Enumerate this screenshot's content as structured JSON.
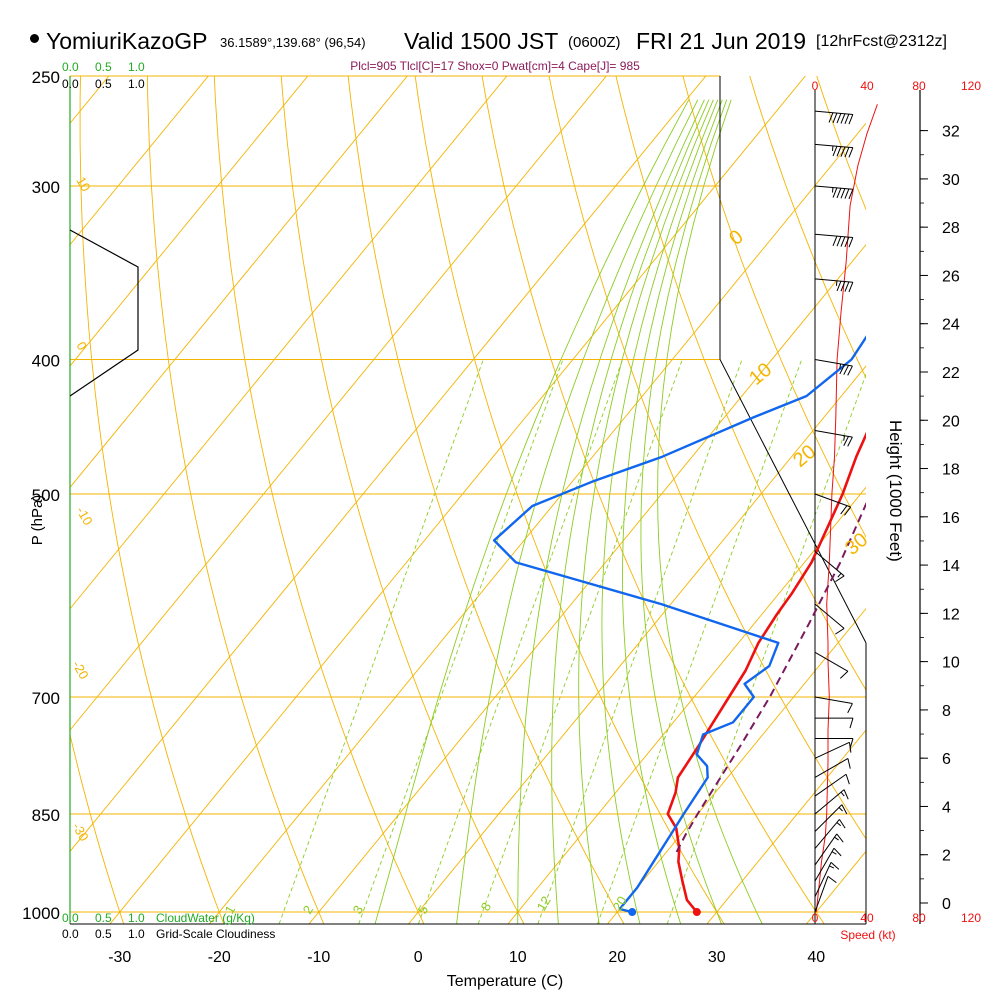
{
  "header": {
    "site": "YomiuriKazoGP",
    "coords": "36.1589°,139.68° (96,54)",
    "valid": "Valid 1500 JST",
    "zulu": "(0600Z)",
    "date": "FRI 21 Jun 2019",
    "forecast": "[12hrFcst@2312z]",
    "params": "Plcl=905 Tlcl[C]=17 Shox=0 Pwat[cm]=4 Cape[J]= 985"
  },
  "colors": {
    "temperature": "#ee1111",
    "dewpoint": "#1166ee",
    "parcel": "#7a1a5e",
    "isobar": "#f4b400",
    "mixing_ratio": "#8ccc22",
    "cloud_scale": "#22aa22",
    "speed": "#ee1111"
  },
  "chart_data": {
    "type": "line",
    "title": "Valid 1500 JST (0600Z) FRI 21 Jun 2019",
    "xlabel": "Temperature (C)",
    "ylabel": "P (hPa)",
    "y2label": "Height (1000 Feet)",
    "xticks": [
      "-30",
      "-20",
      "-10",
      "0",
      "10",
      "20",
      "30",
      "40"
    ],
    "xlim": [
      -35,
      45
    ],
    "yticks": [
      "250",
      "300",
      "400",
      "500",
      "700",
      "850",
      "1000"
    ],
    "ylim": [
      1020,
      250
    ],
    "height_ticks": [
      "0",
      "2",
      "4",
      "6",
      "8",
      "10",
      "12",
      "14",
      "16",
      "18",
      "20",
      "22",
      "24",
      "26",
      "28",
      "30",
      "32"
    ],
    "mixing_ratio_labels": [
      "1",
      "2",
      "3",
      "5",
      "8",
      "12",
      "20"
    ],
    "dry_adiabat_labels": [
      "0",
      "10",
      "20",
      "30"
    ],
    "isotherm_labels": [
      "10",
      "0",
      "-10",
      "-20",
      "-30"
    ],
    "cloud_water_label": "CloudWater (g/Kg)",
    "cloudiness_label": "Grid-Scale Cloudiness",
    "cloud_scale_ticks": [
      "0.0",
      "0.5",
      "1.0"
    ],
    "speed_label": "Speed (kt)",
    "speed_ticks": [
      "0",
      "40",
      "80",
      "120"
    ],
    "series": [
      {
        "points": [
          [
            28,
            1000
          ],
          [
            26,
            980
          ],
          [
            24,
            950
          ],
          [
            22,
            920
          ],
          [
            21,
            900
          ],
          [
            19,
            870
          ],
          [
            17,
            850
          ],
          [
            16,
            820
          ],
          [
            15,
            800
          ],
          [
            14.5,
            760
          ],
          [
            14,
            730
          ],
          [
            13.5,
            700
          ],
          [
            13,
            670
          ],
          [
            12,
            640
          ],
          [
            11.5,
            610
          ],
          [
            11.3,
            590
          ],
          [
            10.7,
            560
          ],
          [
            9.5,
            530
          ],
          [
            8.2,
            500
          ],
          [
            6.5,
            470
          ],
          [
            5,
            440
          ],
          [
            4.3,
            425
          ],
          [
            4,
            400
          ],
          [
            3.2,
            370
          ],
          [
            2,
            340
          ],
          [
            0.5,
            310
          ],
          [
            -0.8,
            285
          ],
          [
            -1.5,
            265
          ]
        ]
      },
      {
        "points": [
          [
            21.5,
            1000
          ],
          [
            20,
            995
          ],
          [
            20,
            960
          ],
          [
            19.5,
            920
          ],
          [
            19,
            880
          ],
          [
            18.6,
            850
          ],
          [
            18,
            800
          ],
          [
            17,
            785
          ],
          [
            15,
            770
          ],
          [
            14,
            745
          ],
          [
            16,
            730
          ],
          [
            16,
            700
          ],
          [
            14,
            685
          ],
          [
            15,
            665
          ],
          [
            14,
            640
          ],
          [
            -1,
            600
          ],
          [
            -19,
            560
          ],
          [
            -23,
            540
          ],
          [
            -22,
            510
          ],
          [
            -18,
            490
          ],
          [
            -13,
            470
          ],
          [
            -7,
            440
          ],
          [
            -3.5,
            425
          ],
          [
            -2,
            400
          ],
          [
            -2.5,
            380
          ],
          [
            -3.5,
            365
          ],
          [
            -4.5,
            340
          ],
          [
            -5.8,
            320
          ],
          [
            -7.5,
            305
          ],
          [
            -9.5,
            290
          ],
          [
            -11.5,
            278
          ],
          [
            -13,
            265
          ]
        ]
      },
      {
        "points": [
          [
            21,
            905
          ],
          [
            20.5,
            880
          ],
          [
            20,
            850
          ],
          [
            18.7,
            760
          ],
          [
            17.6,
            700
          ],
          [
            15.5,
            620
          ],
          [
            13.6,
            560
          ],
          [
            11,
            500
          ],
          [
            7.5,
            440
          ],
          [
            3.4,
            390
          ],
          [
            -1,
            350
          ],
          [
            -3.5,
            330
          ],
          [
            -5.5,
            315
          ],
          [
            -7.6,
            300
          ],
          [
            -10,
            290
          ]
        ]
      },
      {
        "points": [
          [
            1,
            1000
          ],
          [
            3,
            960
          ],
          [
            5,
            920
          ],
          [
            8,
            880
          ],
          [
            9,
            850
          ],
          [
            10,
            780
          ],
          [
            10,
            740
          ],
          [
            11,
            700
          ],
          [
            10,
            660
          ],
          [
            10,
            640
          ],
          [
            9,
            600
          ],
          [
            11,
            560
          ],
          [
            12,
            530
          ],
          [
            13,
            500
          ],
          [
            15,
            470
          ],
          [
            16,
            440
          ],
          [
            17,
            400
          ],
          [
            20,
            370
          ],
          [
            24,
            340
          ],
          [
            27,
            310
          ],
          [
            33,
            290
          ],
          [
            40,
            275
          ],
          [
            48,
            262
          ]
        ]
      }
    ],
    "wind_barbs": [
      {
        "p": 1000,
        "dir": 200,
        "spd": 10
      },
      {
        "p": 975,
        "dir": 205,
        "spd": 15
      },
      {
        "p": 950,
        "dir": 210,
        "spd": 15
      },
      {
        "p": 925,
        "dir": 215,
        "spd": 15
      },
      {
        "p": 900,
        "dir": 220,
        "spd": 15
      },
      {
        "p": 875,
        "dir": 225,
        "spd": 15
      },
      {
        "p": 850,
        "dir": 230,
        "spd": 15
      },
      {
        "p": 825,
        "dir": 235,
        "spd": 10
      },
      {
        "p": 800,
        "dir": 240,
        "spd": 10
      },
      {
        "p": 775,
        "dir": 245,
        "spd": 10
      },
      {
        "p": 750,
        "dir": 270,
        "spd": 10
      },
      {
        "p": 725,
        "dir": 270,
        "spd": 10
      },
      {
        "p": 700,
        "dir": 280,
        "spd": 10
      },
      {
        "p": 650,
        "dir": 300,
        "spd": 10
      },
      {
        "p": 600,
        "dir": 310,
        "spd": 10
      },
      {
        "p": 550,
        "dir": 310,
        "spd": 15
      },
      {
        "p": 500,
        "dir": 290,
        "spd": 20
      },
      {
        "p": 450,
        "dir": 280,
        "spd": 25
      },
      {
        "p": 400,
        "dir": 280,
        "spd": 35
      },
      {
        "p": 350,
        "dir": 275,
        "spd": 45
      },
      {
        "p": 325,
        "dir": 275,
        "spd": 50
      },
      {
        "p": 300,
        "dir": 275,
        "spd": 55
      },
      {
        "p": 280,
        "dir": 275,
        "spd": 55
      },
      {
        "p": 265,
        "dir": 275,
        "spd": 60
      }
    ]
  }
}
